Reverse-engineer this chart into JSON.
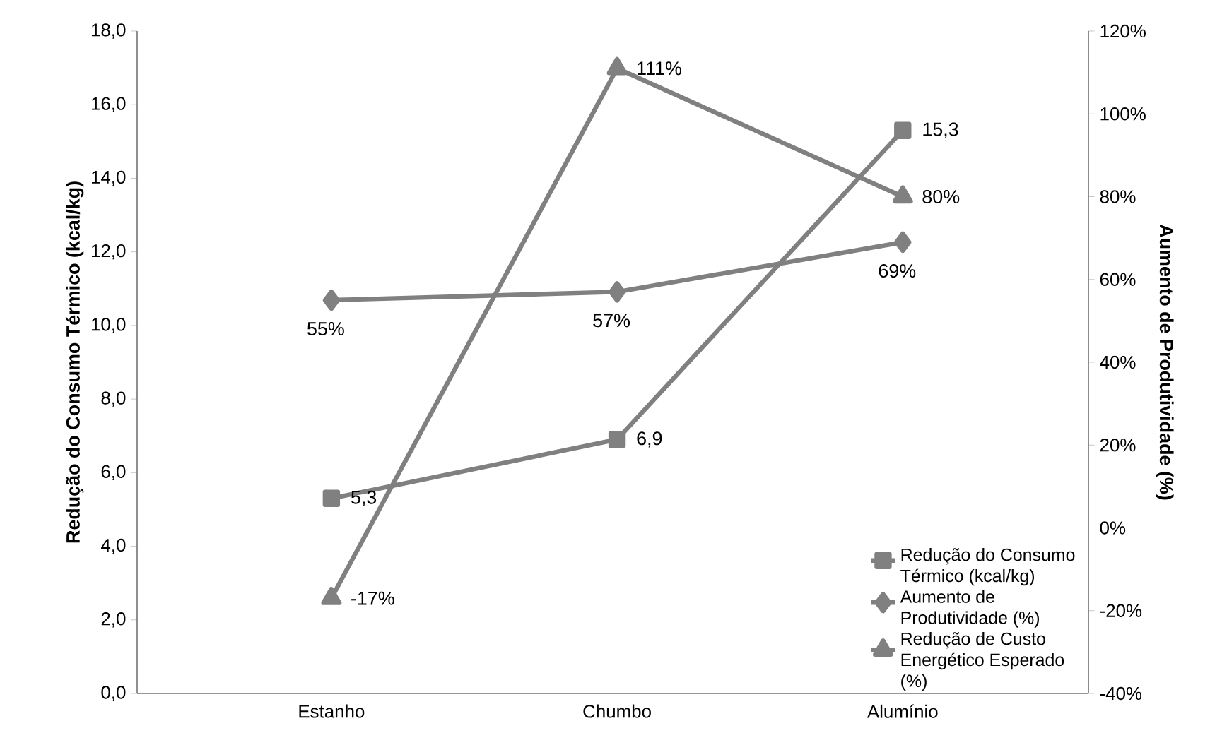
{
  "chart_data": {
    "type": "line",
    "categories": [
      "Estanho",
      "Chumbo",
      "Alumínio"
    ],
    "ylabel": "Redução do Consumo Térmico (kcal/kg)",
    "y2label": "Aumento de Produtividade (%)",
    "ylim": [
      0,
      18
    ],
    "yticks": [
      {
        "value": 0,
        "label": "0,0"
      },
      {
        "value": 2,
        "label": "2,0"
      },
      {
        "value": 4,
        "label": "4,0"
      },
      {
        "value": 6,
        "label": "6,0"
      },
      {
        "value": 8,
        "label": "8,0"
      },
      {
        "value": 10,
        "label": "10,0"
      },
      {
        "value": 12,
        "label": "12,0"
      },
      {
        "value": 14,
        "label": "14,0"
      },
      {
        "value": 16,
        "label": "16,0"
      },
      {
        "value": 18,
        "label": "18,0"
      }
    ],
    "y2lim": [
      -40,
      120
    ],
    "y2ticks": [
      {
        "value": -40,
        "label": "-40%"
      },
      {
        "value": -20,
        "label": "-20%"
      },
      {
        "value": 0,
        "label": "0%"
      },
      {
        "value": 20,
        "label": "20%"
      },
      {
        "value": 40,
        "label": "40%"
      },
      {
        "value": 60,
        "label": "60%"
      },
      {
        "value": 80,
        "label": "80%"
      },
      {
        "value": 100,
        "label": "100%"
      },
      {
        "value": 120,
        "label": "120%"
      }
    ],
    "legend": "bottom right",
    "grid": false,
    "series": [
      {
        "name": "Redução do Consumo Térmico (kcal/kg)",
        "color": "#808080",
        "marker": "square",
        "values": [
          5.3,
          6.9,
          15.3
        ],
        "value_labels": [
          "5,3",
          "6,9",
          "15,3"
        ]
      },
      {
        "name": "Aumento de Produtividade (%)",
        "color": "#808080",
        "marker": "diamond",
        "axis": "y2",
        "values": [
          55,
          57,
          69
        ],
        "value_labels": [
          "55%",
          "57%",
          "69%"
        ]
      },
      {
        "name": "Redução de Custo Energético Esperado (%)",
        "color": "#808080",
        "marker": "triangle",
        "axis": "y2",
        "values": [
          -17,
          111,
          80
        ],
        "value_labels": [
          "-17%",
          "111%",
          "80%"
        ]
      }
    ]
  }
}
